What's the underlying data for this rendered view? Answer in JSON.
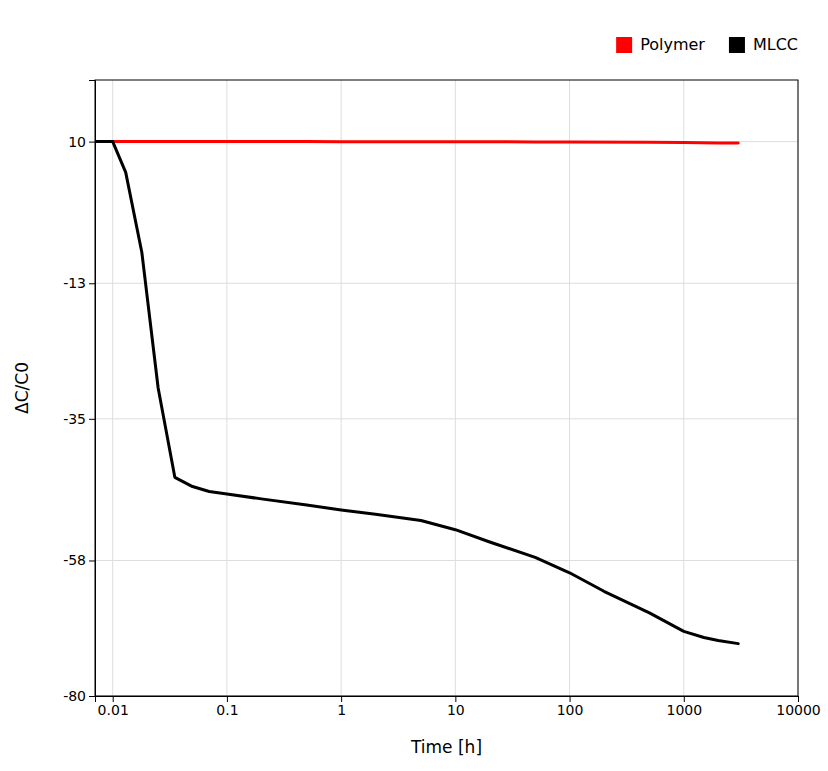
{
  "chart_data": {
    "type": "line",
    "xlabel": "Time [h]",
    "ylabel": "ΔC/C0",
    "series": [
      {
        "name": "Polymer",
        "color": "#ff0000",
        "x": [
          0.007,
          0.01,
          0.05,
          0.1,
          0.5,
          1,
          5,
          10,
          50,
          100,
          500,
          1000,
          2000,
          3000
        ],
        "values": [
          10.0,
          10.0,
          10.0,
          10.0,
          10.0,
          9.99,
          9.98,
          9.97,
          9.95,
          9.93,
          9.88,
          9.84,
          9.79,
          9.77
        ]
      },
      {
        "name": "MLCC",
        "color": "#000000",
        "x": [
          0.007,
          0.01,
          0.013,
          0.018,
          0.025,
          0.035,
          0.05,
          0.07,
          0.1,
          0.2,
          0.5,
          1,
          2,
          5,
          10,
          20,
          50,
          100,
          200,
          500,
          1000,
          1500,
          2000,
          3000
        ],
        "values": [
          10.0,
          10.0,
          5.0,
          -8.0,
          -30.0,
          -44.5,
          -46.0,
          -46.8,
          -47.2,
          -48.0,
          -49.0,
          -49.8,
          -50.5,
          -51.5,
          -53.0,
          -55.0,
          -57.5,
          -60.0,
          -63.0,
          -66.5,
          -69.5,
          -70.5,
          -71.0,
          -71.5
        ]
      }
    ],
    "xlim": [
      0.007,
      10000
    ],
    "ylim": [
      -80,
      20
    ],
    "xticks": [
      0.01,
      0.1,
      1,
      10,
      100,
      1000,
      10000
    ],
    "yticks": [
      10,
      -13,
      -35,
      -58,
      -80
    ],
    "log": "x",
    "grid": true,
    "legend": "upper right"
  }
}
